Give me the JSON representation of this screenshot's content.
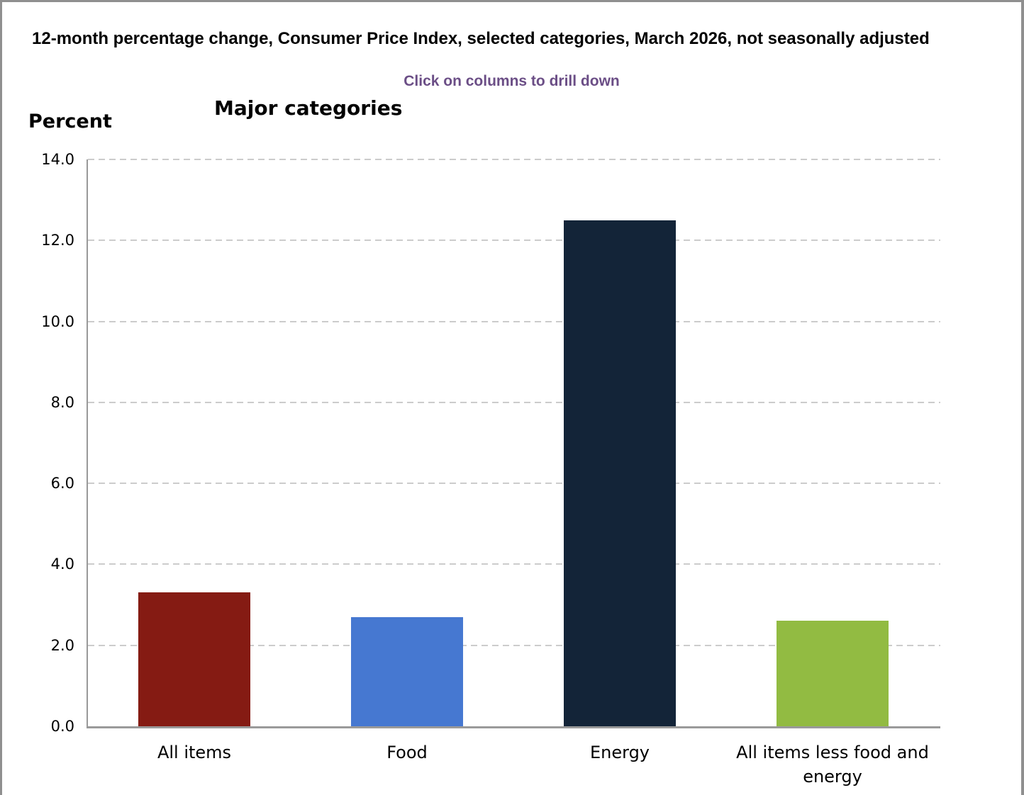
{
  "header": {
    "title": "12-month percentage change, Consumer Price Index, selected categories, March 2026, not seasonally adjusted",
    "subtitle": "Click on columns to drill down"
  },
  "colors": {
    "subtitle_text": "#6B4E86",
    "axis_line": "#999999",
    "gridline": "#cccccc",
    "frame_border": "#8f8f8f"
  },
  "chart_data": {
    "type": "bar",
    "title": "Major categories",
    "ylabel": "Percent",
    "xlabel": "",
    "categories": [
      "All items",
      "Food",
      "Energy",
      "All items less food and energy"
    ],
    "values": [
      3.3,
      2.7,
      12.5,
      2.6
    ],
    "bar_colors": [
      "#851B13",
      "#4678D1",
      "#132438",
      "#92BB42"
    ],
    "ylim": [
      0,
      14
    ],
    "ytick_step": 2,
    "ytick_labels": [
      "0.0",
      "2.0",
      "4.0",
      "6.0",
      "8.0",
      "10.0",
      "12.0",
      "14.0"
    ],
    "grid": "horizontal-dashed",
    "legend": "none"
  }
}
